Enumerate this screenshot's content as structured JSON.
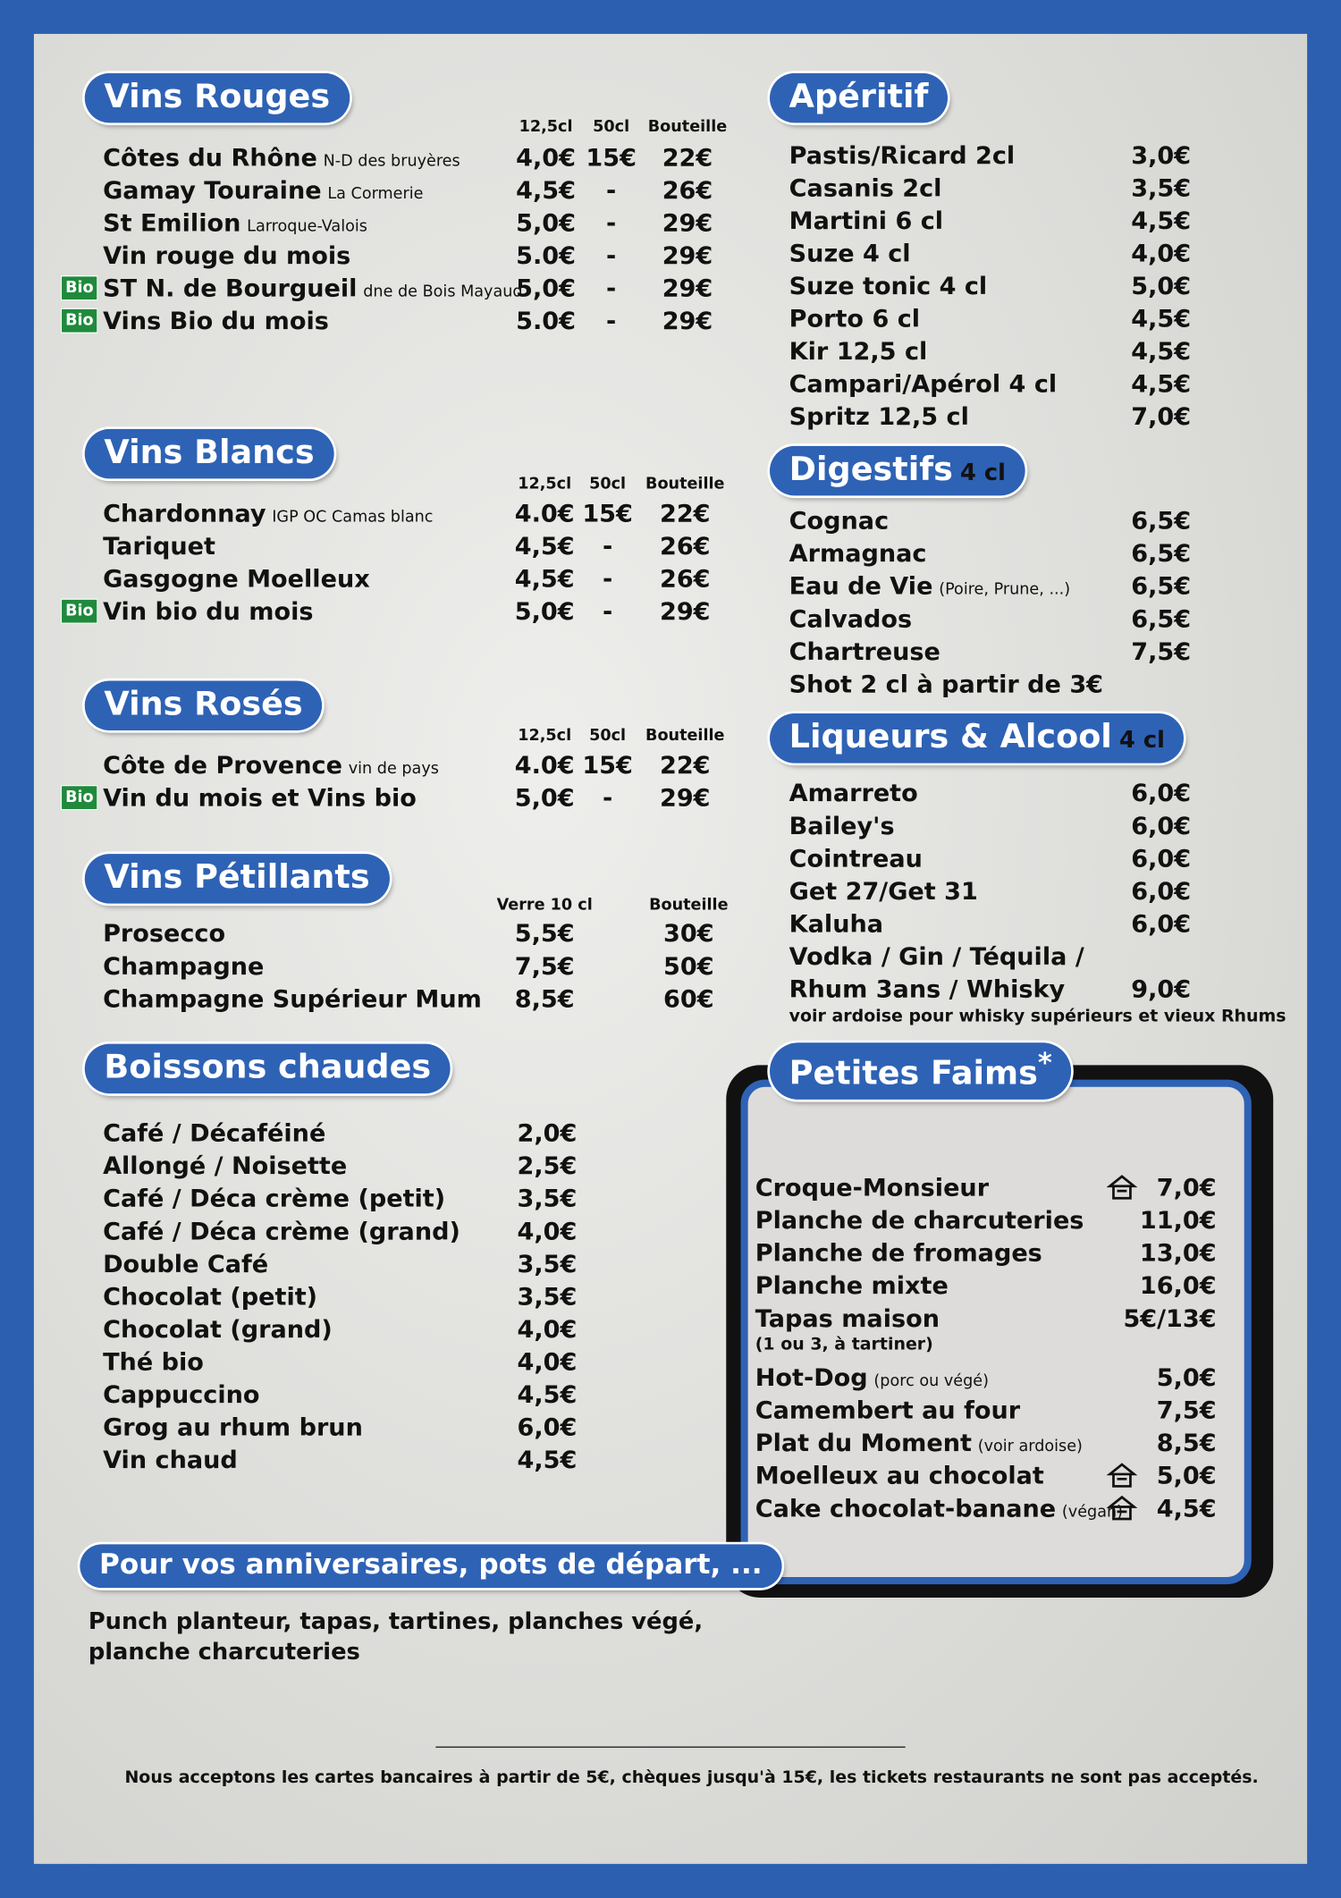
{
  "left_sections": [
    {
      "title": "Vins Rouges",
      "headers": [
        "12,5cl",
        "50cl",
        "Bouteille"
      ],
      "items": [
        {
          "name": "Côtes du Rhône",
          "detail": "N-D des bruyères",
          "prices": [
            "4,0€",
            "15€",
            "22€"
          ]
        },
        {
          "name": "Gamay Touraine",
          "detail": "La Cormerie",
          "prices": [
            "4,5€",
            "-",
            "26€"
          ]
        },
        {
          "name": "St Emilion",
          "detail": "Larroque-Valois",
          "prices": [
            "5,0€",
            "-",
            "29€"
          ]
        },
        {
          "name": "Vin rouge du mois",
          "prices": [
            "5.0€",
            "-",
            "29€"
          ]
        },
        {
          "badge": "Bio",
          "name": "ST N. de Bourgueil",
          "detail": "dne de Bois Mayaud",
          "prices": [
            "5,0€",
            "-",
            "29€"
          ]
        },
        {
          "badge": "Bio",
          "name": "Vins Bio du mois",
          "prices": [
            "5.0€",
            "-",
            "29€"
          ]
        }
      ]
    },
    {
      "title": "Vins Blancs",
      "headers": [
        "12,5cl",
        "50cl",
        "Bouteille"
      ],
      "items": [
        {
          "name": "Chardonnay",
          "detail": "IGP OC Camas blanc",
          "prices": [
            "4.0€",
            "15€",
            "22€"
          ]
        },
        {
          "name": "Tariquet",
          "prices": [
            "4,5€",
            "-",
            "26€"
          ]
        },
        {
          "name": "Gasgogne Moelleux",
          "prices": [
            "4,5€",
            "-",
            "26€"
          ]
        },
        {
          "badge": "Bio",
          "name": "Vin bio du mois",
          "prices": [
            "5,0€",
            "-",
            "29€"
          ]
        }
      ]
    },
    {
      "title": "Vins Rosés",
      "headers": [
        "12,5cl",
        "50cl",
        "Bouteille"
      ],
      "items": [
        {
          "name": "Côte de Provence",
          "detail": "vin de pays",
          "prices": [
            "4.0€",
            "15€",
            "22€"
          ]
        },
        {
          "badge": "Bio",
          "name": "Vin du mois et Vins bio",
          "prices": [
            "5,0€",
            "-",
            "29€"
          ]
        }
      ]
    },
    {
      "title": "Vins Pétillants",
      "headers": [
        "Verre 10 cl",
        "Bouteille"
      ],
      "items": [
        {
          "name": "Prosecco",
          "prices": [
            "5,5€",
            "30€"
          ]
        },
        {
          "name": "Champagne",
          "prices": [
            "7,5€",
            "50€"
          ]
        },
        {
          "name": "Champagne Supérieur Mum",
          "prices": [
            "8,5€",
            "60€"
          ]
        }
      ]
    },
    {
      "title": "Boissons chaudes",
      "items": [
        {
          "name": "Café / Décaféiné",
          "prices": [
            "2,0€"
          ]
        },
        {
          "name": "Allongé / Noisette",
          "prices": [
            "2,5€"
          ]
        },
        {
          "name": "Café / Déca crème (petit)",
          "prices": [
            "3,5€"
          ]
        },
        {
          "name": "Café / Déca crème (grand)",
          "prices": [
            "4,0€"
          ]
        },
        {
          "name": "Double Café",
          "prices": [
            "3,5€"
          ]
        },
        {
          "name": "Chocolat (petit)",
          "prices": [
            "3,5€"
          ]
        },
        {
          "name": "Chocolat (grand)",
          "prices": [
            "4,0€"
          ]
        },
        {
          "name": "Thé bio",
          "prices": [
            "4,0€"
          ]
        },
        {
          "name": "Cappuccino",
          "prices": [
            "4,5€"
          ]
        },
        {
          "name": "Grog au rhum brun",
          "prices": [
            "6,0€"
          ]
        },
        {
          "name": "Vin chaud",
          "prices": [
            "4,5€"
          ]
        }
      ]
    }
  ],
  "right_sections": [
    {
      "title": "Apéritif",
      "items": [
        {
          "name": "Pastis/Ricard 2cl",
          "prices": [
            "3,0€"
          ]
        },
        {
          "name": "Casanis 2cl",
          "prices": [
            "3,5€"
          ]
        },
        {
          "name": "Martini 6 cl",
          "prices": [
            "4,5€"
          ]
        },
        {
          "name": "Suze 4 cl",
          "prices": [
            "4,0€"
          ]
        },
        {
          "name": "Suze tonic 4 cl",
          "prices": [
            "5,0€"
          ]
        },
        {
          "name": "Porto 6 cl",
          "prices": [
            "4,5€"
          ]
        },
        {
          "name": "Kir 12,5 cl",
          "prices": [
            "4,5€"
          ]
        },
        {
          "name": "Campari/Apérol 4 cl",
          "prices": [
            "4,5€"
          ]
        },
        {
          "name": "Spritz 12,5 cl",
          "prices": [
            "7,0€"
          ]
        }
      ]
    },
    {
      "title": "Digestifs",
      "suffix": "4 cl",
      "items": [
        {
          "name": "Cognac",
          "prices": [
            "6,5€"
          ]
        },
        {
          "name": "Armagnac",
          "prices": [
            "6,5€"
          ]
        },
        {
          "name": "Eau de Vie",
          "detail": "(Poire, Prune, ...)",
          "prices": [
            "6,5€"
          ]
        },
        {
          "name": "Calvados",
          "prices": [
            "6,5€"
          ]
        },
        {
          "name": "Chartreuse",
          "prices": [
            "7,5€"
          ]
        },
        {
          "name": "Shot 2 cl à partir de 3€"
        }
      ]
    },
    {
      "title": "Liqueurs & Alcool",
      "suffix": "4 cl",
      "items": [
        {
          "name": "Amarreto",
          "prices": [
            "6,0€"
          ]
        },
        {
          "name": "Bailey's",
          "prices": [
            "6,0€"
          ]
        },
        {
          "name": "Cointreau",
          "prices": [
            "6,0€"
          ]
        },
        {
          "name": "Get 27/Get 31",
          "prices": [
            "6,0€"
          ]
        },
        {
          "name": "Kaluha",
          "prices": [
            "6,0€"
          ]
        },
        {
          "name": "Vodka / Gin / Téquila /"
        },
        {
          "name": "Rhum 3ans / Whisky",
          "prices": [
            "9,0€"
          ]
        }
      ],
      "note": "voir ardoise pour whisky supérieurs et vieux Rhums"
    }
  ],
  "snacks": {
    "title": "Petites Faims",
    "title_mark": "*",
    "items": [
      {
        "name": "Croque-Monsieur",
        "icon": true,
        "prices": [
          "7,0€"
        ]
      },
      {
        "name": "Planche de charcuteries",
        "prices": [
          "11,0€"
        ]
      },
      {
        "name": "Planche de fromages",
        "prices": [
          "13,0€"
        ]
      },
      {
        "name": "Planche mixte",
        "prices": [
          "16,0€"
        ]
      },
      {
        "name": "Tapas maison",
        "prices": [
          "5€/13€"
        ],
        "note": "(1 ou 3, à tartiner)"
      },
      {
        "name": "Hot-Dog",
        "detail": "(porc ou végé)",
        "prices": [
          "5,0€"
        ]
      },
      {
        "name": "Camembert au four",
        "prices": [
          "7,5€"
        ]
      },
      {
        "name": "Plat du Moment",
        "detail": "(voir ardoise)",
        "prices": [
          "8,5€"
        ]
      },
      {
        "name": "Moelleux au chocolat",
        "icon": true,
        "prices": [
          "5,0€"
        ]
      },
      {
        "name": "Cake chocolat-banane",
        "detail": "(végan)",
        "icon": true,
        "prices": [
          "4,5€"
        ]
      }
    ]
  },
  "party": {
    "title": "Pour vos anniversaires, pots de départ, ...",
    "text": "Punch planteur, tapas, tartines, planches végé, planche charcuteries"
  },
  "footer": "Nous acceptons les cartes bancaires à partir de 5€, chèques jusqu'à 15€, les tickets restaurants ne sont pas acceptés."
}
